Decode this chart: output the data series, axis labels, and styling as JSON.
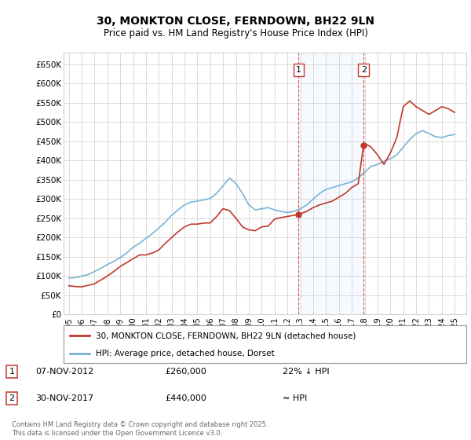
{
  "title": "30, MONKTON CLOSE, FERNDOWN, BH22 9LN",
  "subtitle": "Price paid vs. HM Land Registry's House Price Index (HPI)",
  "legend_line1": "30, MONKTON CLOSE, FERNDOWN, BH22 9LN (detached house)",
  "legend_line2": "HPI: Average price, detached house, Dorset",
  "annotation1_label": "1",
  "annotation1_date": "07-NOV-2012",
  "annotation1_price": "£260,000",
  "annotation1_hpi": "22% ↓ HPI",
  "annotation2_label": "2",
  "annotation2_date": "30-NOV-2017",
  "annotation2_price": "£440,000",
  "annotation2_hpi": "≈ HPI",
  "footer": "Contains HM Land Registry data © Crown copyright and database right 2025.\nThis data is licensed under the Open Government Licence v3.0.",
  "hpi_color": "#7ab3d4",
  "price_color": "#c0392b",
  "vline_color": "#d62728",
  "annotation_box_color": "#c0392b",
  "background_color": "#ffffff",
  "shaded_color": "#ddeeff",
  "ylim": [
    0,
    680000
  ],
  "yticks": [
    0,
    50000,
    100000,
    150000,
    200000,
    250000,
    300000,
    350000,
    400000,
    450000,
    500000,
    550000,
    600000,
    650000
  ],
  "xlim_left": 1994.6,
  "xlim_right": 2025.9,
  "sale1_x": 2012.87,
  "sale1_y": 260000,
  "sale2_x": 2017.92,
  "sale2_y": 440000,
  "hpi_years": [
    1995,
    1995.5,
    1996,
    1996.5,
    1997,
    1997.5,
    1998,
    1998.5,
    1999,
    1999.5,
    2000,
    2000.5,
    2001,
    2001.5,
    2002,
    2002.5,
    2003,
    2003.5,
    2004,
    2004.5,
    2005,
    2005.5,
    2006,
    2006.5,
    2007,
    2007.5,
    2008,
    2008.5,
    2009,
    2009.5,
    2010,
    2010.5,
    2011,
    2011.5,
    2012,
    2012.5,
    2013,
    2013.5,
    2014,
    2014.5,
    2015,
    2015.5,
    2016,
    2016.5,
    2017,
    2017.5,
    2018,
    2018.5,
    2019,
    2019.5,
    2020,
    2020.5,
    2021,
    2021.5,
    2022,
    2022.5,
    2023,
    2023.5,
    2024,
    2024.5,
    2025
  ],
  "hpi_vals": [
    95000,
    96000,
    100000,
    104000,
    112000,
    120000,
    130000,
    138000,
    148000,
    160000,
    175000,
    185000,
    198000,
    210000,
    225000,
    240000,
    258000,
    272000,
    285000,
    292000,
    295000,
    298000,
    302000,
    315000,
    335000,
    355000,
    340000,
    315000,
    285000,
    272000,
    275000,
    278000,
    272000,
    268000,
    265000,
    268000,
    275000,
    285000,
    300000,
    315000,
    325000,
    330000,
    335000,
    340000,
    345000,
    355000,
    370000,
    385000,
    390000,
    398000,
    405000,
    415000,
    435000,
    455000,
    470000,
    478000,
    470000,
    462000,
    460000,
    465000,
    468000
  ],
  "price_years": [
    1995,
    1995.5,
    1996,
    1996.5,
    1997,
    1997.5,
    1998,
    1998.5,
    1999,
    1999.5,
    2000,
    2000.5,
    2001,
    2001.5,
    2002,
    2002.5,
    2003,
    2003.5,
    2004,
    2004.5,
    2005,
    2005.5,
    2006,
    2006.5,
    2007,
    2007.5,
    2008,
    2008.5,
    2009,
    2009.5,
    2010,
    2010.5,
    2011,
    2011.5,
    2012,
    2012.5,
    2012.87,
    2013,
    2013.5,
    2014,
    2014.5,
    2015,
    2015.5,
    2016,
    2016.5,
    2017,
    2017.5,
    2017.92,
    2018,
    2018.5,
    2019,
    2019.5,
    2020,
    2020.5,
    2021,
    2021.5,
    2022,
    2022.5,
    2023,
    2023.5,
    2024,
    2024.5,
    2025
  ],
  "price_vals": [
    75000,
    73000,
    72000,
    76000,
    80000,
    90000,
    100000,
    112000,
    125000,
    135000,
    145000,
    155000,
    155000,
    160000,
    168000,
    185000,
    200000,
    215000,
    228000,
    235000,
    235000,
    238000,
    238000,
    255000,
    275000,
    270000,
    250000,
    228000,
    220000,
    218000,
    228000,
    230000,
    248000,
    252000,
    255000,
    258000,
    260000,
    262000,
    268000,
    278000,
    285000,
    290000,
    295000,
    305000,
    315000,
    330000,
    340000,
    440000,
    445000,
    435000,
    415000,
    390000,
    420000,
    460000,
    540000,
    555000,
    540000,
    530000,
    520000,
    530000,
    540000,
    535000,
    525000
  ]
}
